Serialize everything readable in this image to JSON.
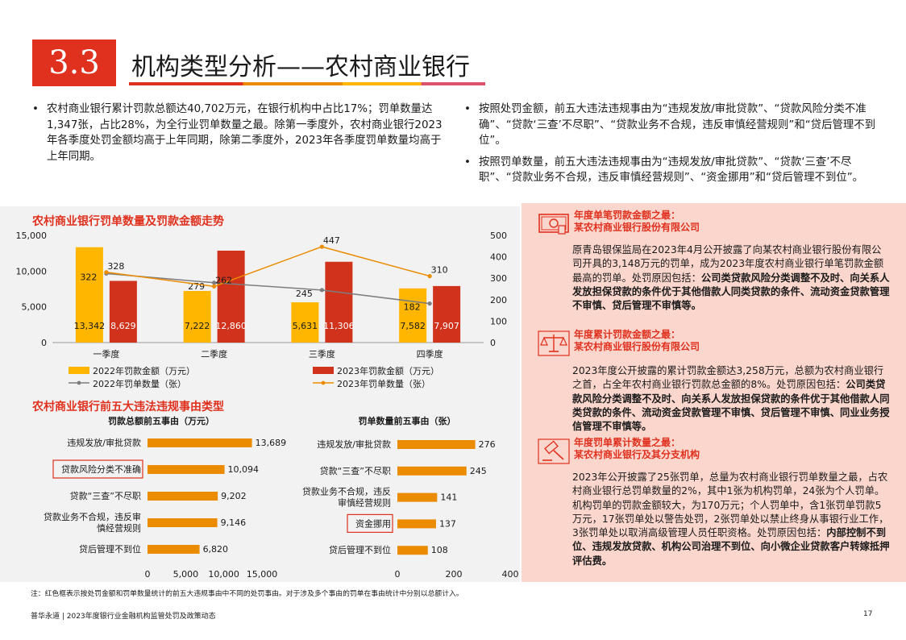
{
  "header": {
    "section_number": "3.3",
    "title": "机构类型分析——农村商业银行"
  },
  "bullets_left": [
    "农村商业银行累计罚款总额达40,702万元，在银行机构中占比17%；罚单数量达1,347张，占比28%，为全行业罚单数量之最。除第一季度外，农村商业银行2023年各季度处罚金额均高于上年同期，除第二季度外，2023年各季度罚单数量均高于上年同期。"
  ],
  "bullets_right": [
    "按照处罚金额，前五大违法违规事由为“违规发放/审批贷款”、“贷款风险分类不准确”、“贷款‘三查’不尽职”、“贷款业务不合规，违反审慎经营规则”和“贷后管理不到位”。",
    "按照罚单数量，前五大违法违规事由为“违规发放/审批贷款”、“贷款‘三查’不尽职”、“贷款业务不合规，违反审慎经营规则”、“资金挪用”和“贷后管理不到位”。"
  ],
  "charts": {
    "trend_title": "农村商业银行罚单数量及罚款金额走势",
    "reasons_title": "农村商业银行前五大违法违规事由类型"
  },
  "colors": {
    "red": "#e0301e",
    "orange": "#eb8c00",
    "yellow": "#ffb600",
    "grey": "#7d7d7d",
    "dark_red": "#d0321c"
  },
  "chart_data": [
    {
      "type": "bar",
      "categories": [
        "一季度",
        "二季度",
        "三季度",
        "四季度"
      ],
      "series": [
        {
          "name": "2022年罚款金额（万元）",
          "axis": "left",
          "kind": "bar",
          "values": [
            13342,
            7222,
            5631,
            7582
          ]
        },
        {
          "name": "2023年罚款金额（万元）",
          "axis": "left",
          "kind": "bar",
          "values": [
            8629,
            12860,
            11306,
            7907
          ]
        },
        {
          "name": "2022年罚单数量（张）",
          "axis": "right",
          "kind": "line",
          "values": [
            322,
            279,
            245,
            182
          ]
        },
        {
          "name": "2023年罚单数量（张）",
          "axis": "right",
          "kind": "line",
          "values": [
            328,
            262,
            447,
            310
          ]
        }
      ],
      "y_left_ticks": [
        "15,000",
        "10,000",
        "5,000",
        "0"
      ],
      "y_right_ticks": [
        "500",
        "400",
        "300",
        "200",
        "100",
        "0"
      ],
      "ylim_left": [
        0,
        15000
      ],
      "ylim_right": [
        0,
        500
      ],
      "bar_labels": {
        "s2022": [
          "13,342",
          "7,222",
          "5,631",
          "7,582"
        ],
        "s2023": [
          "8,629",
          "12,860",
          "11,306",
          "7,907"
        ]
      },
      "line_labels": {
        "s2022": [
          "322",
          "279",
          "245",
          "182"
        ],
        "s2023": [
          "328",
          "262",
          "447",
          "310"
        ]
      },
      "legend_position": "bottom"
    },
    {
      "type": "bar",
      "orientation": "horizontal",
      "title": "罚款总额前五事由（万元）",
      "categories": [
        "违规发放/审批贷款",
        "贷款风险分类不准确",
        "贷款“三查”不尽职",
        "贷款业务不合规，违反审慎经营规则",
        "贷后管理不到位"
      ],
      "category_lines": [
        [
          "违规发放/审批贷款"
        ],
        [
          "贷款风险分类不准确"
        ],
        [
          "贷款“三查”不尽职"
        ],
        [
          "贷款业务不合规，违反审",
          "慎经营规则"
        ],
        [
          "贷后管理不到位"
        ]
      ],
      "values": [
        13689,
        10094,
        9202,
        9146,
        6820
      ],
      "value_labels": [
        "13,689",
        "10,094",
        "9,202",
        "9,146",
        "6,820"
      ],
      "highlighted": [
        1
      ],
      "xlim": [
        0,
        15000
      ],
      "x_ticks": [
        "0",
        "5,000",
        "10,000",
        "15,000"
      ]
    },
    {
      "type": "bar",
      "orientation": "horizontal",
      "title": "罚单数量前五事由（张）",
      "categories": [
        "违规发放/审批贷款",
        "贷款“三查”不尽职",
        "贷款业务不合规，违反审慎经营规则",
        "资金挪用",
        "贷后管理不到位"
      ],
      "category_lines": [
        [
          "违规发放/审批贷款"
        ],
        [
          "贷款“三查”不尽职"
        ],
        [
          "贷款业务不合规，违反",
          "审慎经营规则"
        ],
        [
          "资金挪用"
        ],
        [
          "贷后管理不到位"
        ]
      ],
      "values": [
        276,
        245,
        141,
        137,
        108
      ],
      "value_labels": [
        "276",
        "245",
        "141",
        "137",
        "108"
      ],
      "highlighted": [
        3
      ],
      "xlim": [
        0,
        400
      ],
      "x_ticks": [
        "0",
        "200",
        "400"
      ]
    }
  ],
  "cases": [
    {
      "icon": "money-bill-icon",
      "heading1": "年度单笔罚款金额之最：",
      "heading2": "某农村商业银行股份有限公司",
      "body_plain": "原青岛银保监局在2023年4月公开披露了向某农村商业银行股份有限公司开具的3,148万元的罚单，成为2023年度农村商业银行单笔罚款金额最高的罚单。处罚原因包括：",
      "body_bold": "公司类贷款风险分类调整不及时、向关系人发放担保贷款的条件优于其他借款人同类贷款的条件、流动资金贷款管理不审慎、贷后管理不审慎等。"
    },
    {
      "icon": "balance-scale-icon",
      "heading1": "年度累计罚款金额之最：",
      "heading2": "某农村商业银行股份有限公司",
      "body_plain": "2023年度公开披露的累计罚款金额达3,258万元，总额为农村商业银行之首，占全年农村商业银行罚款总金额的8%。处罚原因包括：",
      "body_bold": "公司类贷款风险分类调整不及时、向关系人发放担保贷款的条件优于其他借款人同类贷款的条件、流动资金贷款管理不审慎、贷后管理不审慎、同业业务授信管理不审慎等。"
    },
    {
      "icon": "gavel-icon",
      "heading1": "年度罚单累计数量之最：",
      "heading2": "某农村商业银行及其分支机构",
      "body_plain": "2023年公开披露了25张罚单，总量为农村商业银行罚单数量之最，占农村商业银行总罚单数量的2%，其中1张为机构罚单，24张为个人罚单。机构罚单的罚款金额较大，为170万元；个人罚单中，含1张罚单罚款5万元，17张罚单处以警告处罚，2张罚单处以禁止终身从事银行业工作，3张罚单处以取消高级管理人员任职资格。处罚原因包括：",
      "body_bold": "内部控制不到位、违规发放贷款、机构公司治理不到位、向小微企业贷款客户转嫁抵押评估费。"
    }
  ],
  "note": "注：红色框表示按处罚金额和罚单数量统计的前五大违规事由中不同的处罚事由。对于涉及多个事由的罚单在事由统计中分别以总额计入。",
  "footer": {
    "text": "普华永道 | 2023年度银行业金融机构监管处罚及政策动态",
    "page": "17"
  }
}
